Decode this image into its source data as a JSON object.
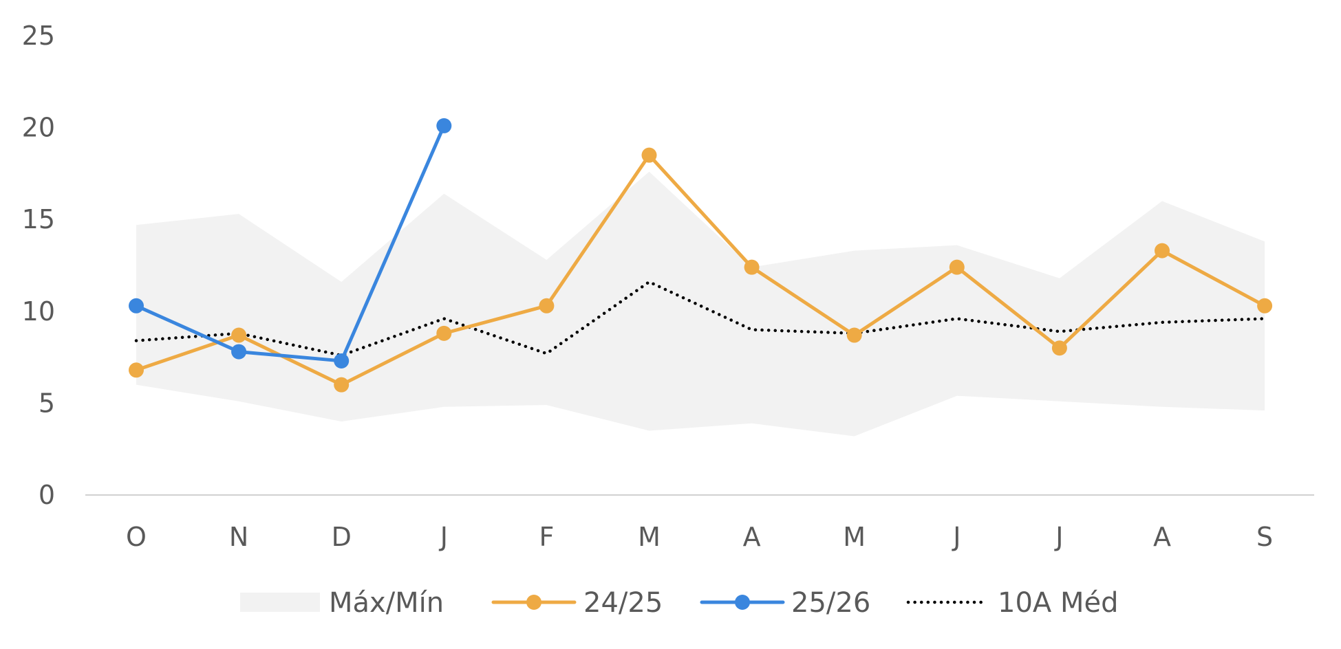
{
  "chart_data": {
    "type": "line",
    "title": "",
    "xlabel": "",
    "ylabel": "",
    "categories": [
      "O",
      "N",
      "D",
      "J",
      "F",
      "M",
      "A",
      "M",
      "J",
      "J",
      "A",
      "S"
    ],
    "ylim": [
      0,
      25
    ],
    "yticks": [
      0,
      5,
      10,
      15,
      20,
      25
    ],
    "grid": false,
    "legend_position": "bottom",
    "band": {
      "name": "Máx/Mín",
      "color": "#f2f2f2",
      "max": [
        14.7,
        15.3,
        11.6,
        16.4,
        12.8,
        17.6,
        12.4,
        13.3,
        13.6,
        11.8,
        16.0,
        13.8
      ],
      "min": [
        6.0,
        5.1,
        4.0,
        4.8,
        4.9,
        3.5,
        3.9,
        3.2,
        5.4,
        5.1,
        4.8,
        4.6
      ]
    },
    "series": [
      {
        "name": "24/25",
        "color": "#eeaa44",
        "style": "line-marker",
        "values": [
          6.8,
          8.7,
          6.0,
          8.8,
          10.3,
          18.5,
          12.4,
          8.7,
          12.4,
          8.0,
          13.3,
          10.3
        ]
      },
      {
        "name": "25/26",
        "color": "#3a86de",
        "style": "line-marker",
        "values": [
          10.3,
          7.8,
          7.3,
          20.1,
          null,
          null,
          null,
          null,
          null,
          null,
          null,
          null
        ]
      },
      {
        "name": "10A Méd",
        "color": "#000000",
        "style": "dotted",
        "values": [
          8.4,
          8.8,
          7.6,
          9.6,
          7.7,
          11.6,
          9.0,
          8.8,
          9.6,
          8.9,
          9.4,
          9.6
        ]
      }
    ]
  }
}
